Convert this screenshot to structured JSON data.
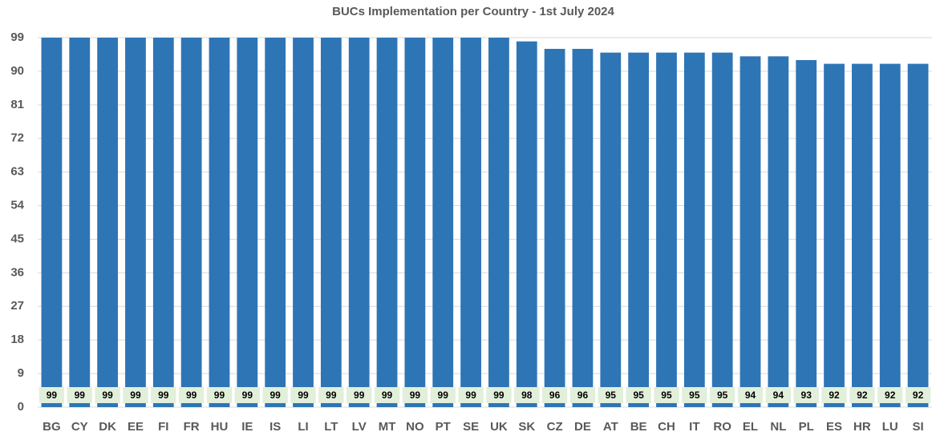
{
  "chart_data": {
    "type": "bar",
    "title": "BUCs Implementation per Country - 1st July 2024",
    "categories": [
      "BG",
      "CY",
      "DK",
      "EE",
      "FI",
      "FR",
      "HU",
      "IE",
      "IS",
      "LI",
      "LT",
      "LV",
      "MT",
      "NO",
      "PT",
      "SE",
      "UK",
      "SK",
      "CZ",
      "DE",
      "AT",
      "BE",
      "CH",
      "IT",
      "RO",
      "EL",
      "NL",
      "PL",
      "ES",
      "HR",
      "LU",
      "SI"
    ],
    "values": [
      99,
      99,
      99,
      99,
      99,
      99,
      99,
      99,
      99,
      99,
      99,
      99,
      99,
      99,
      99,
      99,
      99,
      98,
      96,
      96,
      95,
      95,
      95,
      95,
      95,
      94,
      94,
      93,
      92,
      92,
      92,
      92
    ],
    "color": "#2e75b6",
    "ylim": [
      0,
      99
    ],
    "yticks": [
      0,
      9,
      18,
      27,
      36,
      45,
      54,
      63,
      72,
      81,
      90,
      99
    ],
    "grid": true
  }
}
